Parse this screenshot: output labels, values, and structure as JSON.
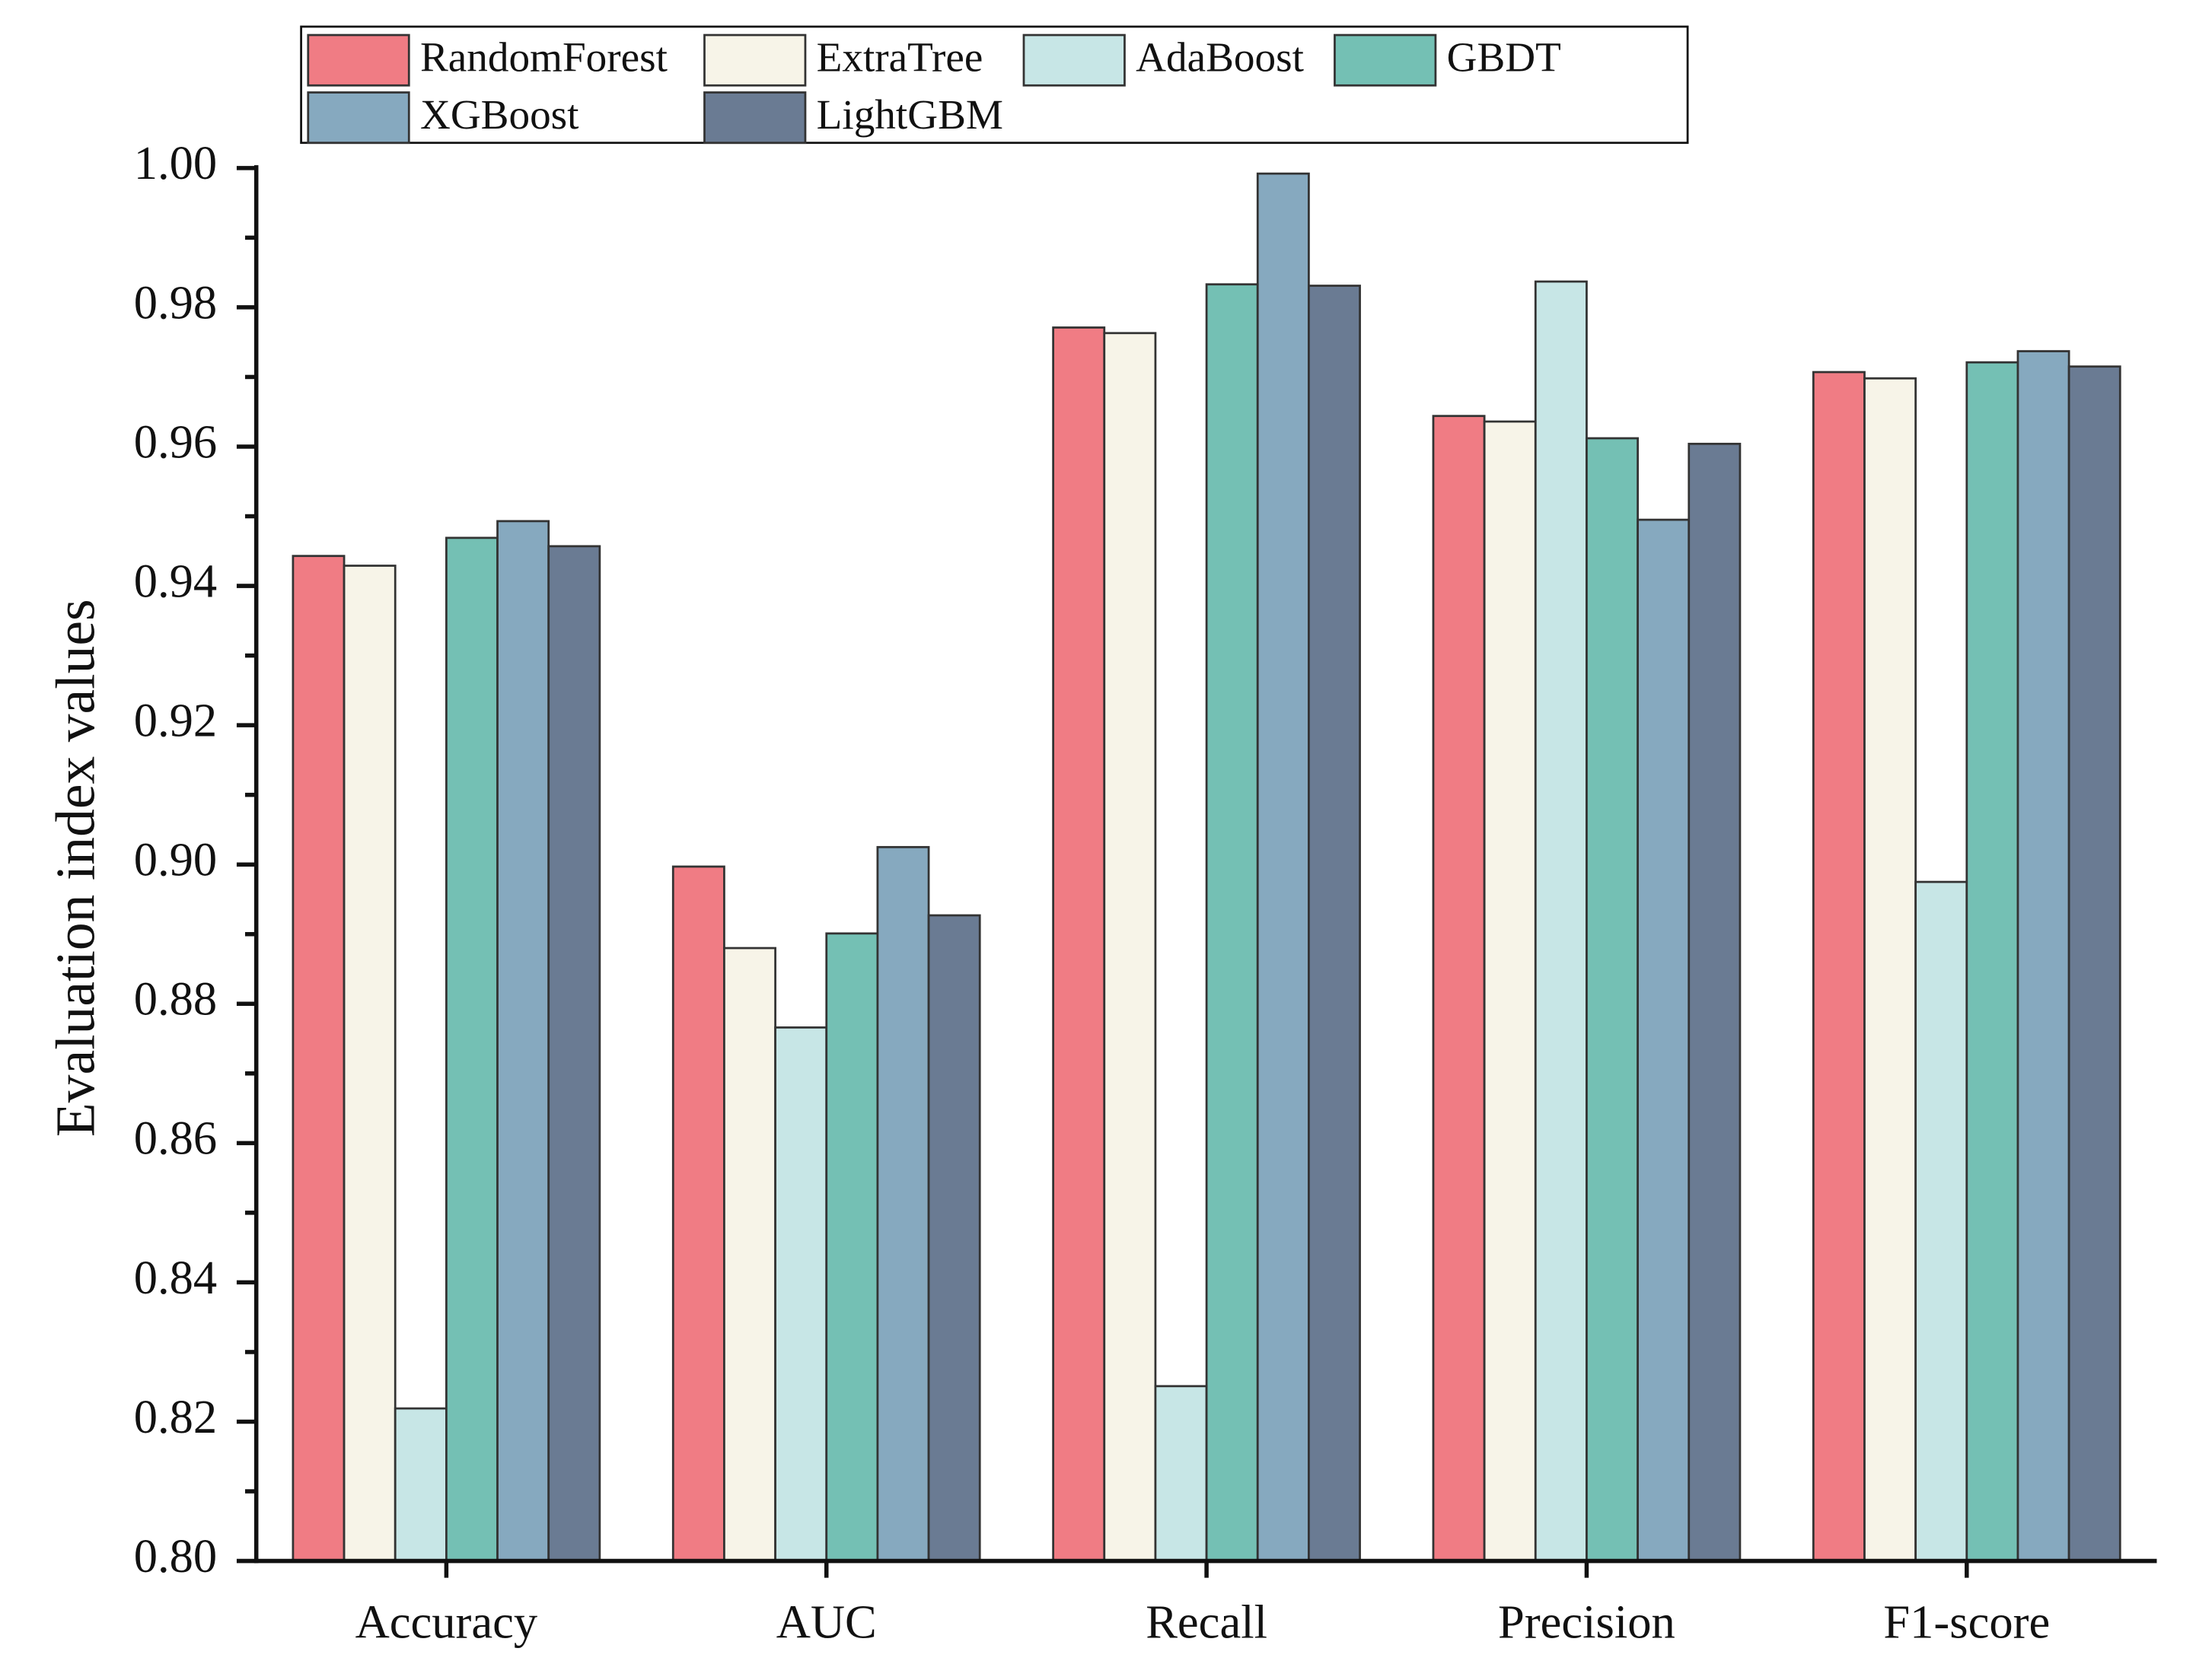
{
  "chart_data": {
    "type": "bar",
    "y_label": "Evaluation index values",
    "categories": [
      "Accuracy",
      "AUC",
      "Recall",
      "Precision",
      "F1-score"
    ],
    "series": [
      {
        "name": "RandomForest",
        "color": "#f07c84",
        "values": [
          0.9443,
          0.8997,
          0.9771,
          0.9644,
          0.9707
        ]
      },
      {
        "name": "ExtraTree",
        "color": "#f7f4e8",
        "values": [
          0.9429,
          0.888,
          0.9763,
          0.9636,
          0.9698
        ]
      },
      {
        "name": "AdaBoost",
        "color": "#c7e6e6",
        "values": [
          0.8219,
          0.8766,
          0.8251,
          0.9837,
          0.8975
        ]
      },
      {
        "name": "GBDT",
        "color": "#74c0b4",
        "values": [
          0.9469,
          0.8901,
          0.9833,
          0.9612,
          0.9721
        ]
      },
      {
        "name": "XGBoost",
        "color": "#86a9bf",
        "values": [
          0.9493,
          0.9025,
          0.9992,
          0.9495,
          0.9737
        ]
      },
      {
        "name": "LightGBM",
        "color": "#6a7b93",
        "values": [
          0.9457,
          0.8927,
          0.9831,
          0.9604,
          0.9715
        ]
      }
    ],
    "ylim": [
      0.8,
      1.0
    ],
    "yticks": [
      {
        "value": 0.8,
        "label": "0.80"
      },
      {
        "value": 0.82,
        "label": "0.82"
      },
      {
        "value": 0.84,
        "label": "0.84"
      },
      {
        "value": 0.86,
        "label": "0.86"
      },
      {
        "value": 0.88,
        "label": "0.88"
      },
      {
        "value": 0.9,
        "label": "0.90"
      },
      {
        "value": 0.92,
        "label": "0.92"
      },
      {
        "value": 0.94,
        "label": "0.94"
      },
      {
        "value": 0.96,
        "label": "0.96"
      },
      {
        "value": 0.98,
        "label": "0.98"
      },
      {
        "value": 1.0,
        "label": "1.00"
      }
    ],
    "grid": false,
    "legend_position": "top"
  }
}
